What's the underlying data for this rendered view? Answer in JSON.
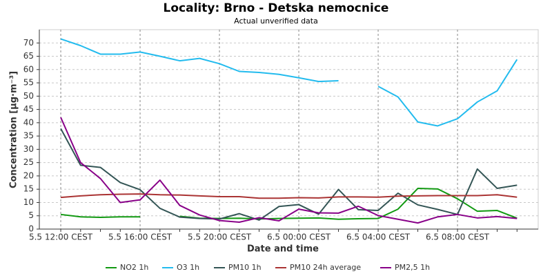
{
  "chart_data": {
    "type": "line",
    "title": "Locality: Brno - Detska nemocnice",
    "subtitle": "Actual unverified data",
    "x_label": "Date and time",
    "y_label": "Concentration [µg·m⁻³]",
    "categories": [
      "5.5 12:00 CEST",
      null,
      null,
      null,
      "5.5 16:00 CEST",
      null,
      null,
      null,
      "5.5 20:00 CEST",
      null,
      null,
      null,
      "6.5 00:00 CEST",
      null,
      null,
      null,
      "6.5 04:00 CEST",
      null,
      null,
      null,
      "6.5 08:00 CEST",
      null,
      null,
      null
    ],
    "ylim": [
      0,
      75
    ],
    "yticks": [
      0,
      5,
      10,
      15,
      20,
      25,
      30,
      35,
      40,
      45,
      50,
      55,
      60,
      65,
      70
    ],
    "grid": true,
    "legend": "bottom",
    "series": [
      {
        "name": "NO2 1h",
        "color": "#119911",
        "values": [
          5.5,
          4.6,
          4.4,
          4.6,
          4.6,
          null,
          4.8,
          4.1,
          4.0,
          4.1,
          3.8,
          4.0,
          4.1,
          4.2,
          3.7,
          3.9,
          4.0,
          7.5,
          15.3,
          15.1,
          11.4,
          6.7,
          7.0,
          4.1
        ]
      },
      {
        "name": "O3 1h",
        "color": "#22bbee",
        "values": [
          71.5,
          69,
          65.8,
          65.8,
          66.6,
          65,
          63.3,
          64.2,
          62.2,
          59.3,
          58.9,
          58.2,
          56.9,
          55.5,
          55.8,
          null,
          53.7,
          49.7,
          40.3,
          38.8,
          41.5,
          47.8,
          52,
          63.8
        ]
      },
      {
        "name": "PM10 1h",
        "color": "#335555",
        "values": [
          37.8,
          24,
          23.2,
          17.5,
          14.8,
          7.8,
          4.5,
          4.0,
          3.8,
          5.8,
          3.4,
          8.5,
          9.2,
          5.6,
          14.9,
          7.3,
          7.0,
          13.5,
          9.1,
          7.4,
          5.5,
          22.6,
          15.3,
          16.5
        ]
      },
      {
        "name": "PM10 24h average",
        "color": "#aa3333",
        "values": [
          11.9,
          12.5,
          12.9,
          13.1,
          13.2,
          12.9,
          12.8,
          12.5,
          12.2,
          12.2,
          11.6,
          11.6,
          11.8,
          11.7,
          12.1,
          12.1,
          12.0,
          12.4,
          12.5,
          12.6,
          12.6,
          12.6,
          12.9,
          12.0
        ]
      },
      {
        "name": "PM2,5 1h",
        "color": "#880088",
        "values": [
          42,
          25,
          19,
          10,
          11,
          18.4,
          8.9,
          5.3,
          3.2,
          2.6,
          4.3,
          3.1,
          7.5,
          6.1,
          6.0,
          8.6,
          5.1,
          3.7,
          2.3,
          4.6,
          5.5,
          4.2,
          4.7,
          4.0
        ]
      }
    ]
  }
}
